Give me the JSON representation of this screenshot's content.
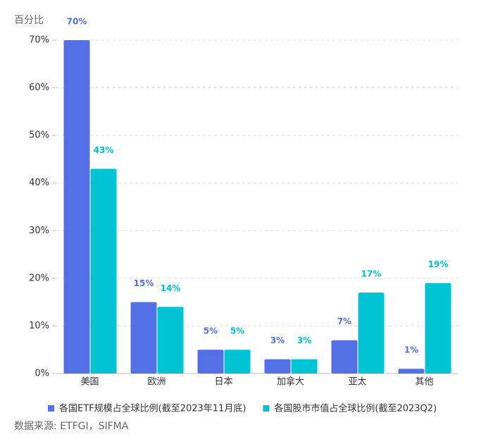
{
  "chart_data": {
    "type": "bar",
    "y_label": "百分比",
    "categories": [
      "美国",
      "欧洲",
      "日本",
      "加拿大",
      "亚太",
      "其他"
    ],
    "series": [
      {
        "name": "各国ETF规模占全球比例(截至2023年11月底)",
        "color": "#5470e6",
        "values": [
          70,
          15,
          5,
          3,
          7,
          1
        ],
        "value_labels": [
          "70%",
          "15%",
          "5%",
          "3%",
          "7%",
          "1%"
        ]
      },
      {
        "name": "各国股市市值占全球比例(截至2023Q2)",
        "color": "#00c3d4",
        "values": [
          43,
          14,
          5,
          3,
          17,
          19
        ],
        "value_labels": [
          "43%",
          "14%",
          "5%",
          "3%",
          "17%",
          "19%"
        ]
      }
    ],
    "ylim": [
      0,
      70
    ],
    "yticks": [
      {
        "value": 0,
        "label": "0%"
      },
      {
        "value": 10,
        "label": "10%"
      },
      {
        "value": 20,
        "label": "20%"
      },
      {
        "value": 30,
        "label": "30%"
      },
      {
        "value": 40,
        "label": "40%"
      },
      {
        "value": 50,
        "label": "50%"
      },
      {
        "value": 60,
        "label": "60%"
      },
      {
        "value": 70,
        "label": "70%"
      }
    ],
    "grid": true,
    "source": "数据来源: ETFGI，SIFMA"
  }
}
